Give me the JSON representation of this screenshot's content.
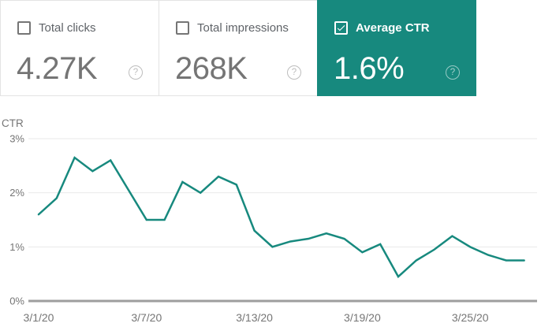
{
  "help_icon_glyph": "?",
  "cards": [
    {
      "label": "Total clicks",
      "value": "4.27K",
      "checked": false
    },
    {
      "label": "Total impressions",
      "value": "268K",
      "checked": false
    },
    {
      "label": "Average CTR",
      "value": "1.6%",
      "checked": true
    }
  ],
  "colors": {
    "accent_teal": "#17897E",
    "value_gray": "#757575",
    "label_gray": "#5f6368",
    "axis_gray": "#9e9e9e",
    "gridline_gray": "#e9e9e9"
  },
  "chart_data": {
    "type": "line",
    "title": "CTR",
    "ylabel": "CTR",
    "x": [
      "3/1/20",
      "3/2/20",
      "3/3/20",
      "3/4/20",
      "3/5/20",
      "3/6/20",
      "3/7/20",
      "3/8/20",
      "3/9/20",
      "3/10/20",
      "3/11/20",
      "3/12/20",
      "3/13/20",
      "3/14/20",
      "3/15/20",
      "3/16/20",
      "3/17/20",
      "3/18/20",
      "3/19/20",
      "3/20/20",
      "3/21/20",
      "3/22/20",
      "3/23/20",
      "3/24/20",
      "3/25/20",
      "3/26/20",
      "3/27/20",
      "3/28/20"
    ],
    "values": [
      1.6,
      1.9,
      2.65,
      2.4,
      2.6,
      2.05,
      1.5,
      1.5,
      2.2,
      2.0,
      2.3,
      2.15,
      1.3,
      1.0,
      1.1,
      1.15,
      1.25,
      1.15,
      0.9,
      1.05,
      0.45,
      0.75,
      0.95,
      1.2,
      1.0,
      0.85,
      0.75,
      0.75
    ],
    "x_tick_labels": [
      "3/1/20",
      "3/7/20",
      "3/13/20",
      "3/19/20",
      "3/25/20"
    ],
    "x_tick_positions": [
      0,
      6,
      12,
      18,
      24
    ],
    "y_ticks": [
      0,
      1,
      2,
      3
    ],
    "y_tick_labels": [
      "0%",
      "1%",
      "2%",
      "3%"
    ],
    "ylim": [
      0,
      3
    ],
    "grid": true,
    "legend": "none",
    "line_color": "#17897E"
  }
}
